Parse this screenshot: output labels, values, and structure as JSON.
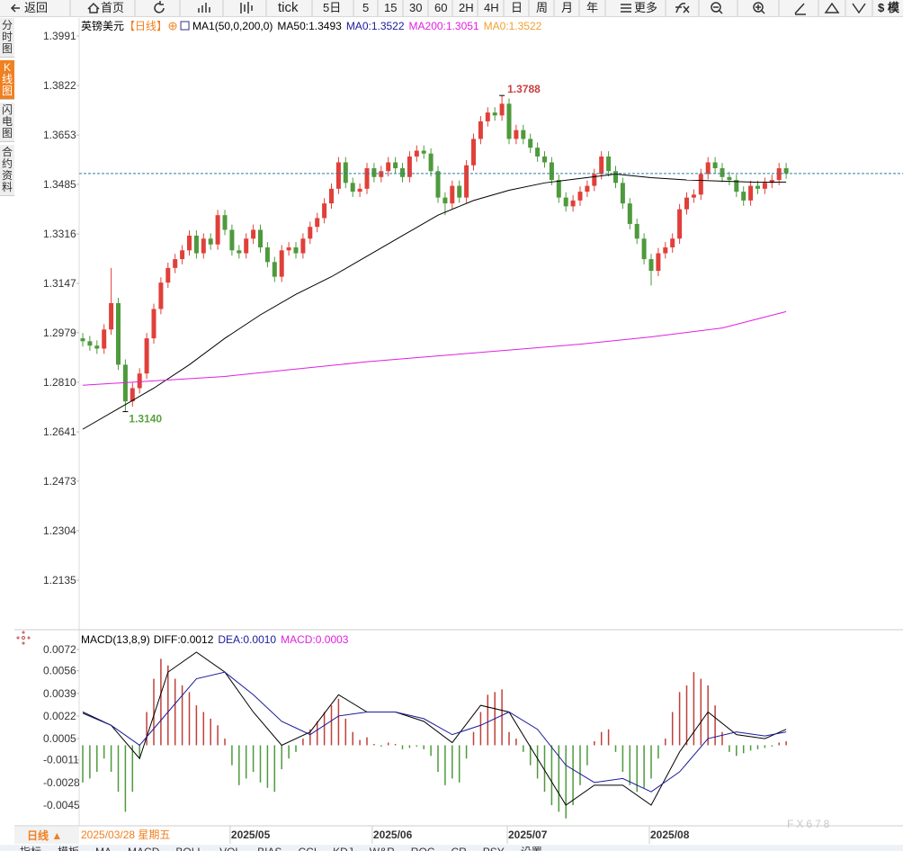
{
  "toolbar": [
    "返回",
    "首页",
    "tick",
    "5日",
    "5",
    "15",
    "30",
    "60",
    "2H",
    "4H",
    "日",
    "周",
    "月",
    "年",
    "更多",
    "$ 模"
  ],
  "side_tabs": [
    "分时图",
    "K线图",
    "闪电图",
    "合约资料"
  ],
  "chart_data": [
    {
      "type": "candlestick",
      "title": "英镑美元",
      "period": "【日线】",
      "legend": [
        {
          "text": "MA1(50,0,200,0)",
          "color": "#000000"
        },
        {
          "text": "MA50:1.3493",
          "color": "#000000"
        },
        {
          "text": "MA0:1.3522",
          "color": "#1a1a9a"
        },
        {
          "text": "MA200:1.3051",
          "color": "#e020e0"
        },
        {
          "text": "MA0:1.3522",
          "color": "#f0a030"
        }
      ],
      "categories": [
        "2025/03/28 星期五",
        null,
        null,
        null,
        null,
        null,
        null,
        null,
        null,
        null,
        null,
        null,
        null,
        null,
        null,
        null,
        null,
        null,
        null,
        null,
        null,
        "2025/05",
        null,
        null,
        null,
        null,
        null,
        null,
        null,
        null,
        null,
        null,
        null,
        null,
        null,
        null,
        null,
        null,
        null,
        null,
        null,
        "2025/06",
        null,
        null,
        null,
        null,
        null,
        null,
        null,
        null,
        null,
        null,
        null,
        null,
        null,
        null,
        null,
        null,
        null,
        null,
        "2025/07",
        null,
        null,
        null,
        null,
        null,
        null,
        null,
        null,
        null,
        null,
        null,
        null,
        null,
        null,
        null,
        null,
        null,
        null,
        null,
        "2025/08",
        null,
        null,
        null,
        null,
        null,
        null,
        null,
        null,
        null,
        null,
        null,
        null,
        null,
        null,
        null,
        null,
        null,
        null,
        null
      ],
      "candles": [
        [
          1.296,
          1.2978,
          1.2932,
          1.295
        ],
        [
          1.295,
          1.2968,
          1.2917,
          1.2935
        ],
        [
          1.2935,
          1.2953,
          1.2907,
          1.2925
        ],
        [
          1.2925,
          1.3008,
          1.2907,
          1.299
        ],
        [
          1.299,
          1.32,
          1.2972,
          1.308
        ],
        [
          1.308,
          1.3098,
          1.2852,
          1.287
        ],
        [
          1.287,
          1.2888,
          1.271,
          1.2745
        ],
        [
          1.2745,
          1.2808,
          1.2727,
          1.279
        ],
        [
          1.279,
          1.2858,
          1.2772,
          1.284
        ],
        [
          1.284,
          1.2978,
          1.2822,
          1.296
        ],
        [
          1.296,
          1.3078,
          1.2942,
          1.306
        ],
        [
          1.306,
          1.3168,
          1.3042,
          1.315
        ],
        [
          1.315,
          1.3218,
          1.3132,
          1.32
        ],
        [
          1.32,
          1.3248,
          1.3182,
          1.323
        ],
        [
          1.323,
          1.3278,
          1.3212,
          1.326
        ],
        [
          1.326,
          1.3328,
          1.3242,
          1.331
        ],
        [
          1.331,
          1.3328,
          1.3232,
          1.325
        ],
        [
          1.325,
          1.3318,
          1.3232,
          1.33
        ],
        [
          1.33,
          1.3318,
          1.3262,
          1.328
        ],
        [
          1.328,
          1.3398,
          1.3262,
          1.338
        ],
        [
          1.338,
          1.3398,
          1.3312,
          1.333
        ],
        [
          1.333,
          1.3348,
          1.3242,
          1.326
        ],
        [
          1.326,
          1.3278,
          1.3232,
          1.325
        ],
        [
          1.325,
          1.3318,
          1.3232,
          1.33
        ],
        [
          1.33,
          1.3348,
          1.3282,
          1.333
        ],
        [
          1.333,
          1.3348,
          1.3252,
          1.327
        ],
        [
          1.327,
          1.3288,
          1.3202,
          1.322
        ],
        [
          1.322,
          1.3238,
          1.3152,
          1.317
        ],
        [
          1.317,
          1.3278,
          1.3152,
          1.326
        ],
        [
          1.326,
          1.3288,
          1.3242,
          1.327
        ],
        [
          1.327,
          1.3288,
          1.3232,
          1.325
        ],
        [
          1.325,
          1.3318,
          1.3232,
          1.33
        ],
        [
          1.33,
          1.3358,
          1.3282,
          1.334
        ],
        [
          1.334,
          1.3388,
          1.3322,
          1.337
        ],
        [
          1.337,
          1.3438,
          1.3352,
          1.342
        ],
        [
          1.342,
          1.3488,
          1.3402,
          1.347
        ],
        [
          1.347,
          1.3578,
          1.3452,
          1.356
        ],
        [
          1.356,
          1.3578,
          1.3472,
          1.349
        ],
        [
          1.349,
          1.3508,
          1.3442,
          1.346
        ],
        [
          1.346,
          1.3488,
          1.3442,
          1.347
        ],
        [
          1.347,
          1.3558,
          1.3452,
          1.354
        ],
        [
          1.354,
          1.3558,
          1.3492,
          1.351
        ],
        [
          1.351,
          1.3548,
          1.3492,
          1.353
        ],
        [
          1.353,
          1.3578,
          1.3512,
          1.356
        ],
        [
          1.356,
          1.3578,
          1.3522,
          1.354
        ],
        [
          1.354,
          1.3558,
          1.3492,
          1.351
        ],
        [
          1.351,
          1.3598,
          1.3492,
          1.358
        ],
        [
          1.358,
          1.3618,
          1.3562,
          1.36
        ],
        [
          1.36,
          1.3618,
          1.3572,
          1.359
        ],
        [
          1.359,
          1.3608,
          1.3512,
          1.353
        ],
        [
          1.353,
          1.3548,
          1.3422,
          1.344
        ],
        [
          1.344,
          1.3458,
          1.338,
          1.342
        ],
        [
          1.342,
          1.3498,
          1.3402,
          1.348
        ],
        [
          1.348,
          1.3498,
          1.3422,
          1.344
        ],
        [
          1.344,
          1.3568,
          1.3422,
          1.355
        ],
        [
          1.355,
          1.3658,
          1.3532,
          1.364
        ],
        [
          1.364,
          1.3718,
          1.3622,
          1.37
        ],
        [
          1.37,
          1.3748,
          1.3682,
          1.373
        ],
        [
          1.373,
          1.3748,
          1.3702,
          1.372
        ],
        [
          1.372,
          1.3788,
          1.3702,
          1.376
        ],
        [
          1.376,
          1.3778,
          1.3622,
          1.364
        ],
        [
          1.364,
          1.3688,
          1.3622,
          1.367
        ],
        [
          1.367,
          1.3688,
          1.3622,
          1.364
        ],
        [
          1.364,
          1.3658,
          1.3592,
          1.361
        ],
        [
          1.361,
          1.3628,
          1.3562,
          1.358
        ],
        [
          1.358,
          1.3598,
          1.3542,
          1.356
        ],
        [
          1.356,
          1.3578,
          1.3482,
          1.35
        ],
        [
          1.35,
          1.3518,
          1.3422,
          1.344
        ],
        [
          1.344,
          1.3458,
          1.3392,
          1.341
        ],
        [
          1.341,
          1.3448,
          1.3392,
          1.343
        ],
        [
          1.343,
          1.3478,
          1.3412,
          1.346
        ],
        [
          1.346,
          1.3498,
          1.3442,
          1.348
        ],
        [
          1.348,
          1.3538,
          1.3462,
          1.352
        ],
        [
          1.352,
          1.3598,
          1.3502,
          1.358
        ],
        [
          1.358,
          1.3598,
          1.3512,
          1.353
        ],
        [
          1.353,
          1.3548,
          1.3472,
          1.349
        ],
        [
          1.349,
          1.3508,
          1.3402,
          1.342
        ],
        [
          1.342,
          1.3438,
          1.3332,
          1.335
        ],
        [
          1.335,
          1.3368,
          1.3282,
          1.33
        ],
        [
          1.33,
          1.3318,
          1.3212,
          1.323
        ],
        [
          1.323,
          1.3248,
          1.314,
          1.319
        ],
        [
          1.319,
          1.3268,
          1.3172,
          1.325
        ],
        [
          1.325,
          1.3288,
          1.3232,
          1.327
        ],
        [
          1.327,
          1.3318,
          1.3252,
          1.33
        ],
        [
          1.33,
          1.3418,
          1.3282,
          1.34
        ],
        [
          1.34,
          1.3458,
          1.3382,
          1.344
        ],
        [
          1.344,
          1.3468,
          1.3422,
          1.345
        ],
        [
          1.345,
          1.3538,
          1.3432,
          1.352
        ],
        [
          1.352,
          1.3578,
          1.3502,
          1.356
        ],
        [
          1.356,
          1.3578,
          1.3522,
          1.354
        ],
        [
          1.354,
          1.3558,
          1.3492,
          1.351
        ],
        [
          1.351,
          1.3528,
          1.3482,
          1.35
        ],
        [
          1.35,
          1.3518,
          1.3442,
          1.346
        ],
        [
          1.346,
          1.3478,
          1.3412,
          1.343
        ],
        [
          1.343,
          1.3498,
          1.3412,
          1.348
        ],
        [
          1.348,
          1.3498,
          1.3452,
          1.347
        ],
        [
          1.347,
          1.3508,
          1.3452,
          1.349
        ],
        [
          1.349,
          1.3518,
          1.3472,
          1.35
        ],
        [
          1.35,
          1.3558,
          1.3482,
          1.354
        ],
        [
          1.354,
          1.3558,
          1.3504,
          1.3522
        ]
      ],
      "up_color": "#e0403a",
      "down_color": "#4e9a3c",
      "series": [
        {
          "color": "#000000",
          "x": [
            0,
            5,
            10,
            15,
            20,
            25,
            30,
            35,
            40,
            45,
            50,
            55,
            60,
            65,
            70,
            75,
            80,
            85,
            90,
            95,
            99
          ],
          "values": [
            1.265,
            1.272,
            1.279,
            1.287,
            1.296,
            1.304,
            1.311,
            1.317,
            1.324,
            1.331,
            1.338,
            1.343,
            1.3465,
            1.349,
            1.3505,
            1.352,
            1.3508,
            1.35,
            1.3496,
            1.3492,
            1.3493
          ]
        },
        {
          "color": "#e020e0",
          "x": [
            0,
            10,
            20,
            30,
            40,
            50,
            60,
            70,
            80,
            90,
            99
          ],
          "values": [
            1.28,
            1.2815,
            1.283,
            1.2855,
            1.288,
            1.29,
            1.292,
            1.294,
            1.2965,
            1.2995,
            1.3051
          ]
        }
      ],
      "extreme_labels": {
        "high": "1.3788",
        "low": "1.3140"
      },
      "ylim": [
        1.2135,
        1.3991
      ],
      "yticks": [
        1.3991,
        1.3822,
        1.3653,
        1.3485,
        1.3316,
        1.3147,
        1.2979,
        {
          "value": 1.281,
          "label": "1.2810"
        },
        1.2641,
        1.2473,
        1.2304,
        1.2135
      ],
      "grid": false
    },
    {
      "type": "macd",
      "title": "MACD(13,8,9)",
      "legend": [
        {
          "text": "DIFF:0.0012",
          "color": "#000000"
        },
        {
          "text": "DEA:0.0010",
          "color": "#1a1a9a"
        },
        {
          "text": "MACD:0.0003",
          "color": "#e020e0"
        }
      ],
      "histogram": [
        -0.0028,
        -0.0025,
        -0.002,
        -0.001,
        -0.002,
        -0.0035,
        -0.005,
        -0.0035,
        -0.001,
        0.0025,
        0.005,
        0.0065,
        0.006,
        0.005,
        0.0045,
        0.004,
        0.003,
        0.0025,
        0.002,
        0.0015,
        0.0005,
        -0.0015,
        -0.003,
        -0.0025,
        -0.002,
        -0.0028,
        -0.0032,
        -0.0035,
        -0.0018,
        -0.001,
        -0.0005,
        0.0005,
        0.0012,
        0.0018,
        0.0025,
        0.003,
        0.0035,
        0.002,
        0.001,
        0.0004,
        0.0006,
        0.0001,
        -0.0001,
        0.0002,
        0.0001,
        -0.0003,
        -0.0002,
        -0.0001,
        -0.0003,
        -0.0008,
        -0.002,
        -0.003,
        -0.0025,
        -0.0028,
        -0.001,
        0.001,
        0.0025,
        0.0038,
        0.004,
        0.0042,
        0.001,
        0.0005,
        -0.0005,
        -0.0015,
        -0.0025,
        -0.0035,
        -0.0045,
        -0.005,
        -0.0055,
        -0.0045,
        -0.003,
        -0.0015,
        0.0003,
        0.001,
        0.0012,
        -0.0005,
        -0.002,
        -0.003,
        -0.0035,
        -0.0032,
        -0.0025,
        -0.001,
        0.0005,
        0.0025,
        0.004,
        0.0045,
        0.0055,
        0.005,
        0.0045,
        0.003,
        0.001,
        -0.0005,
        -0.0008,
        -0.0006,
        -0.0004,
        -0.0003,
        -0.0002,
        -0.0001,
        0.0002,
        0.0003
      ],
      "up_color": "#c0403a",
      "down_color": "#4e9a3c",
      "series": [
        {
          "color": "#000000",
          "x": [
            0,
            4,
            8,
            12,
            16,
            20,
            24,
            28,
            32,
            36,
            40,
            44,
            48,
            52,
            56,
            60,
            64,
            68,
            72,
            76,
            80,
            84,
            88,
            92,
            96,
            99
          ],
          "values": [
            0.0025,
            0.0015,
            -0.001,
            0.0055,
            0.007,
            0.0055,
            0.0025,
            0.0,
            0.001,
            0.0038,
            0.0025,
            0.0025,
            0.0018,
            0.0002,
            0.003,
            0.0025,
            -0.001,
            -0.0045,
            -0.003,
            -0.003,
            -0.0045,
            -0.0005,
            0.0025,
            0.0008,
            0.0005,
            0.0012
          ]
        },
        {
          "color": "#1a1a9a",
          "x": [
            0,
            4,
            8,
            12,
            16,
            20,
            24,
            28,
            32,
            36,
            40,
            44,
            48,
            52,
            56,
            60,
            64,
            68,
            72,
            76,
            80,
            84,
            88,
            92,
            96,
            99
          ],
          "values": [
            0.0024,
            0.0015,
            0.0,
            0.0025,
            0.005,
            0.0055,
            0.0038,
            0.0018,
            0.0008,
            0.0022,
            0.0025,
            0.0025,
            0.002,
            0.0008,
            0.0015,
            0.0025,
            0.0012,
            -0.0015,
            -0.0028,
            -0.0025,
            -0.0035,
            -0.002,
            0.0005,
            0.001,
            0.0007,
            0.001
          ]
        }
      ],
      "ylim": [
        -0.0045,
        0.0072
      ],
      "yticks": [
        0.0072,
        0.0056,
        0.0039,
        0.0022,
        0.0005,
        -0.0011,
        -0.0028,
        -0.0045
      ]
    }
  ],
  "footer": {
    "period": "日线 ▲",
    "tabs": [
      "指标",
      "模板",
      "MA",
      "MACD",
      "BOLL",
      "VOL",
      "BIAS",
      "CCI",
      "KDJ",
      "W&R",
      "ROC",
      "CR",
      "PSY",
      "设置"
    ]
  },
  "watermark": "FX678"
}
